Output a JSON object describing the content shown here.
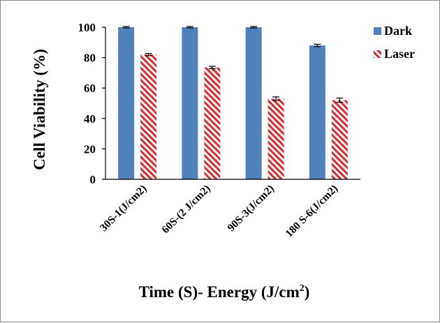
{
  "chart_data": {
    "type": "bar",
    "categories": [
      "30S-1(J/cm2)",
      "60S-(2 J/cm2)",
      "90S-3(J/cm2)",
      "180 S-6(J/cm2)"
    ],
    "series": [
      {
        "name": "Dark",
        "values": [
          100,
          100,
          100,
          88
        ],
        "errors": [
          0.5,
          0.5,
          0.5,
          0.8
        ],
        "color": "#4f81bd",
        "pattern": "solid"
      },
      {
        "name": "Laser",
        "values": [
          82,
          73.5,
          53,
          52
        ],
        "errors": [
          0.7,
          0.8,
          1.2,
          1.4
        ],
        "color": "#e3262b",
        "pattern": "diagonal-hatch"
      }
    ],
    "ylabel": "Cell Viability (%)",
    "xlabel_main": "Time (S)- Energy (J/cm",
    "xlabel_sup": "2",
    "xlabel_end": ")",
    "ylim": [
      0,
      100
    ],
    "yticks": [
      "0",
      "20",
      "40",
      "60",
      "80",
      "100"
    ],
    "grid": false,
    "legend_position": "top-right"
  }
}
